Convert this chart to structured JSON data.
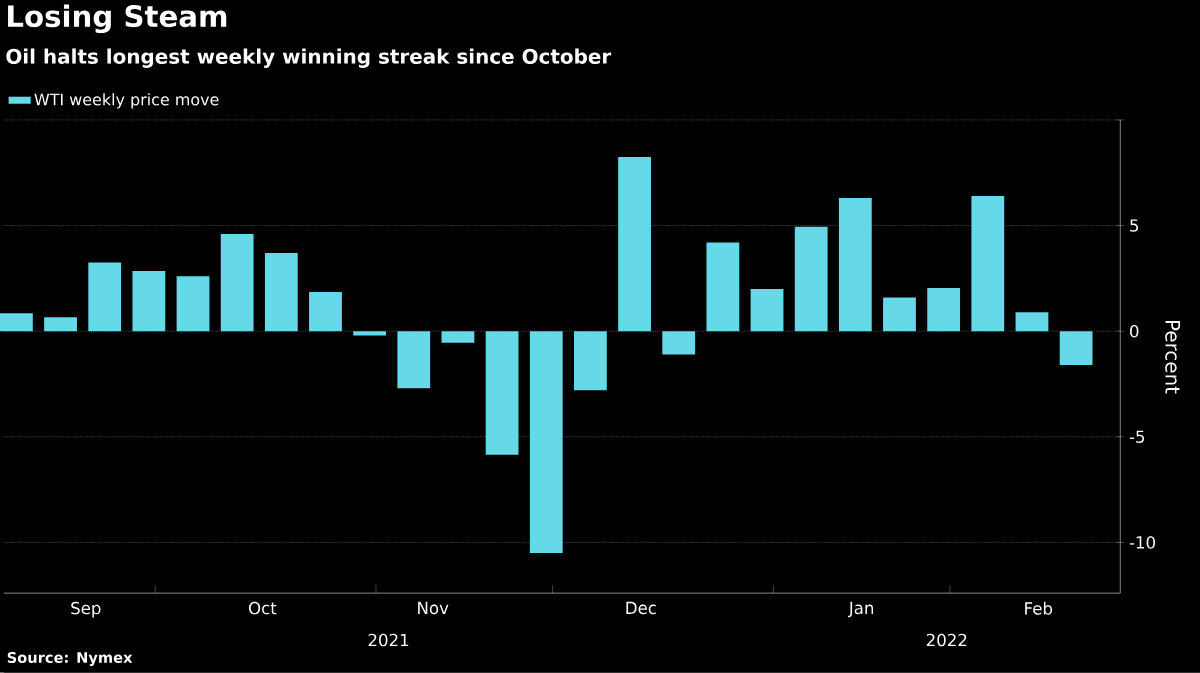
{
  "chart_data": {
    "type": "bar",
    "title": "Losing Steam",
    "subtitle": "Oil halts longest weekly winning streak since October",
    "ylabel": "Percent",
    "x": [
      "2021-09-03",
      "2021-09-10",
      "2021-09-17",
      "2021-09-24",
      "2021-10-01",
      "2021-10-08",
      "2021-10-15",
      "2021-10-22",
      "2021-10-29",
      "2021-11-05",
      "2021-11-12",
      "2021-11-19",
      "2021-11-26",
      "2021-12-03",
      "2021-12-10",
      "2021-12-17",
      "2021-12-24",
      "2021-12-31",
      "2022-01-07",
      "2022-01-14",
      "2022-01-21",
      "2022-01-28",
      "2022-02-04",
      "2022-02-11",
      "2022-02-18"
    ],
    "series": [
      {
        "name": "WTI weekly price move",
        "color": "#66d9e8",
        "values": [
          0.85,
          0.66,
          3.25,
          2.85,
          2.6,
          4.6,
          3.7,
          1.85,
          -0.2,
          -2.7,
          -0.55,
          -5.85,
          -10.5,
          -2.8,
          8.25,
          -1.1,
          4.2,
          2.0,
          4.95,
          6.3,
          1.6,
          2.05,
          6.4,
          0.9,
          -1.6
        ]
      }
    ],
    "xlim": [
      "2021-09-01",
      "2022-02-25"
    ],
    "xticks": [
      {
        "value": "2021-09-14",
        "label": "Sep"
      },
      {
        "value": "2021-09-25",
        "label": null
      },
      {
        "value": "2021-10-12",
        "label": "Oct"
      },
      {
        "value": "2021-10-30",
        "label": null
      },
      {
        "value": "2021-11-08",
        "label": "Nov"
      },
      {
        "value": "2021-11-27",
        "label": null
      },
      {
        "value": "2021-12-11",
        "label": "Dec"
      },
      {
        "value": "2022-01-01",
        "label": null
      },
      {
        "value": "2022-01-15",
        "label": "Jan"
      },
      {
        "value": "2022-01-29",
        "label": null
      },
      {
        "value": "2022-02-12",
        "label": "Feb"
      }
    ],
    "ylim": [
      -12.4,
      10
    ],
    "yticks": [
      -10,
      -5,
      0,
      5,
      {
        "value": 10,
        "label": null
      }
    ],
    "grid": "y",
    "legend": "top left",
    "annotations": [
      "2021",
      "2022",
      "Source: Nymex"
    ]
  }
}
